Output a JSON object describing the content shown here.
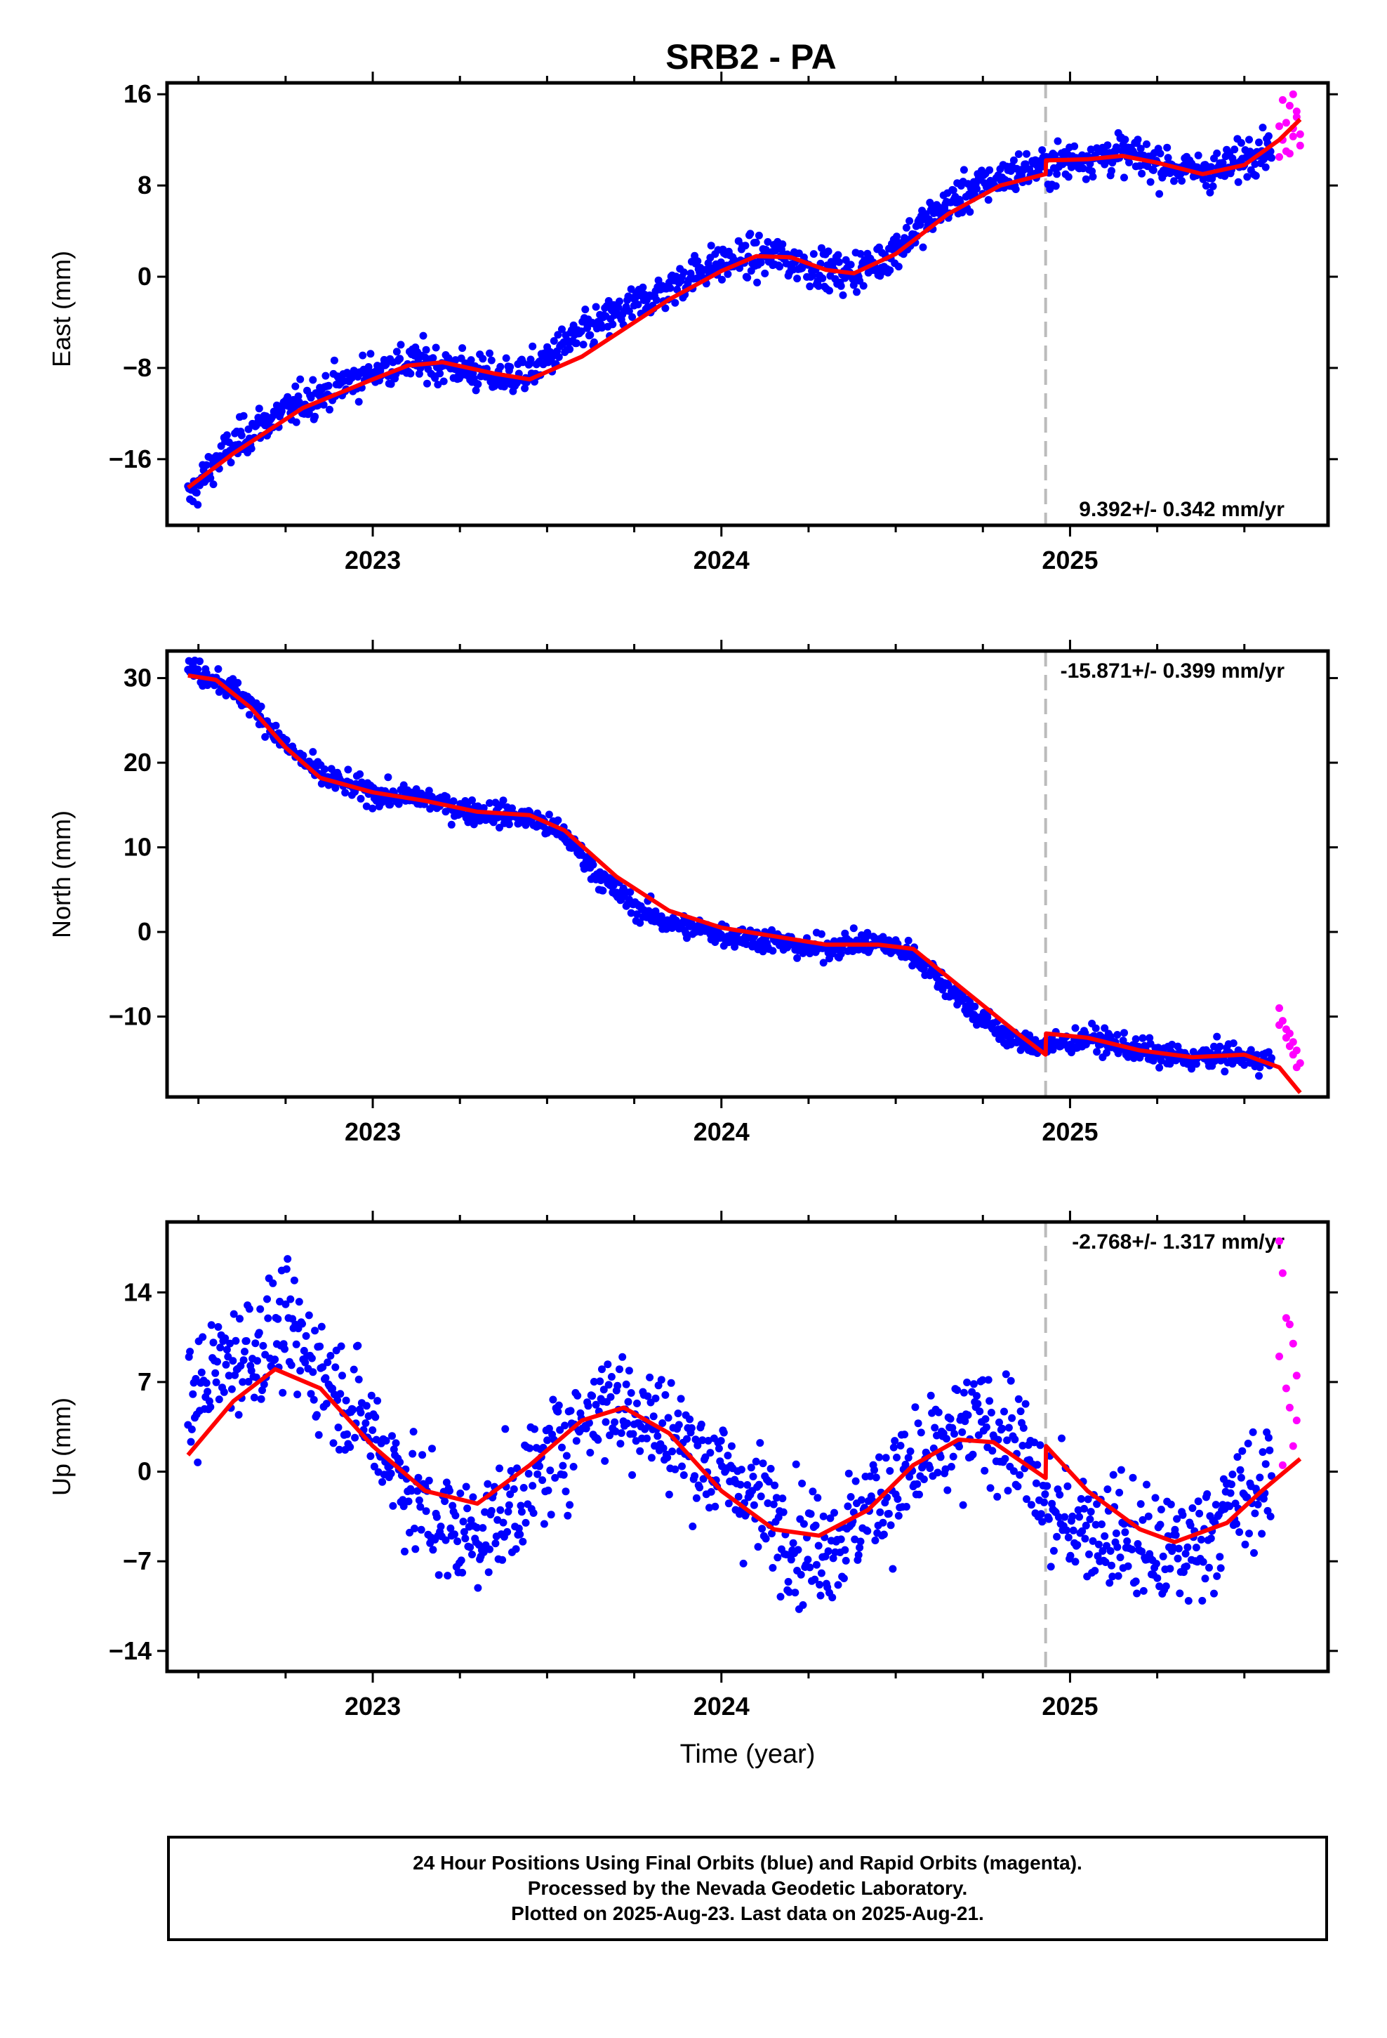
{
  "title": "SRB2 - PA",
  "xlabel": "Time (year)",
  "colors": {
    "final": "#0000ff",
    "rapid": "#ff00ff",
    "model": "#ff0000",
    "discontinuity": "#bbbbbb"
  },
  "chart_data": [
    {
      "id": "east",
      "type": "scatter",
      "ylabel": "East (mm)",
      "rate_label": "9.392+/- 0.342 mm/yr",
      "xlim": [
        2022.41,
        2025.74
      ],
      "ylim": [
        -21.8,
        17
      ],
      "yticks": [
        -16,
        -8,
        0,
        8,
        16
      ],
      "xticks": [
        2023,
        2024,
        2025
      ],
      "discontinuity": 2024.93,
      "model": {
        "x": [
          2022.47,
          2022.6,
          2022.8,
          2023.0,
          2023.1,
          2023.2,
          2023.35,
          2023.45,
          2023.6,
          2023.75,
          2023.85,
          2024.0,
          2024.1,
          2024.2,
          2024.3,
          2024.38,
          2024.5,
          2024.65,
          2024.8,
          2024.93,
          2024.931,
          2025.05,
          2025.15,
          2025.25,
          2025.38,
          2025.5,
          2025.6,
          2025.66
        ],
        "y": [
          -18.5,
          -15.5,
          -11.5,
          -9.0,
          -7.8,
          -7.5,
          -8.5,
          -9.0,
          -7.0,
          -4.0,
          -2.0,
          0.5,
          1.8,
          1.7,
          0.6,
          0.3,
          2.0,
          5.5,
          8.0,
          9.0,
          10.2,
          10.3,
          10.6,
          10.0,
          9.0,
          9.8,
          12.0,
          13.8
        ]
      },
      "final_points": {
        "x": [
          2022.47,
          2022.55,
          2022.65,
          2022.75,
          2022.85,
          2022.95,
          2023.05,
          2023.15,
          2023.25,
          2023.35,
          2023.45,
          2023.55,
          2023.65,
          2023.75,
          2023.85,
          2023.95,
          2024.05,
          2024.15,
          2024.25,
          2024.35,
          2024.45,
          2024.55,
          2024.65,
          2024.75,
          2024.85,
          2024.95,
          2025.05,
          2025.15,
          2025.25,
          2025.35,
          2025.45,
          2025.55
        ],
        "y": [
          -19.5,
          -16.2,
          -13.5,
          -11.8,
          -10.2,
          -8.9,
          -7.8,
          -7.5,
          -8.0,
          -8.8,
          -8.5,
          -6.0,
          -4.2,
          -2.5,
          -1.0,
          0.8,
          1.5,
          1.8,
          1.0,
          0.2,
          1.2,
          3.8,
          6.5,
          8.0,
          9.2,
          9.8,
          10.5,
          10.8,
          10.0,
          9.2,
          9.5,
          11.5
        ]
      },
      "rapid_points": {
        "x": [
          2025.6,
          2025.61,
          2025.62,
          2025.63,
          2025.64,
          2025.65,
          2025.66,
          2025.62,
          2025.64,
          2025.65,
          2025.66,
          2025.63,
          2025.61,
          2025.6,
          2025.64
        ],
        "y": [
          10.5,
          12.0,
          13.5,
          15.0,
          16.0,
          14.5,
          12.5,
          11.0,
          13.0,
          14.0,
          11.5,
          10.8,
          15.5,
          13.2,
          12.3
        ]
      }
    },
    {
      "id": "north",
      "type": "scatter",
      "ylabel": "North (mm)",
      "rate_label": "-15.871+/- 0.399 mm/yr",
      "xlim": [
        2022.41,
        2025.74
      ],
      "ylim": [
        -19.5,
        33.2
      ],
      "yticks": [
        -10,
        0,
        10,
        20,
        30
      ],
      "xticks": [
        2023,
        2024,
        2025
      ],
      "discontinuity": 2024.93,
      "model": {
        "x": [
          2022.47,
          2022.55,
          2022.65,
          2022.75,
          2022.85,
          2023.0,
          2023.15,
          2023.3,
          2023.45,
          2023.55,
          2023.7,
          2023.85,
          2024.0,
          2024.15,
          2024.3,
          2024.45,
          2024.55,
          2024.7,
          2024.85,
          2024.93,
          2024.931,
          2025.05,
          2025.2,
          2025.35,
          2025.5,
          2025.6,
          2025.66
        ],
        "y": [
          30.3,
          29.8,
          26.5,
          21.8,
          18.2,
          16.5,
          15.5,
          14.2,
          13.8,
          12.0,
          6.5,
          2.5,
          0.5,
          -0.5,
          -1.5,
          -1.5,
          -2.0,
          -7.0,
          -12.0,
          -14.5,
          -12.0,
          -12.5,
          -14.0,
          -14.8,
          -14.5,
          -16.0,
          -19.0
        ]
      },
      "final_points": {
        "x": [
          2022.47,
          2022.55,
          2022.65,
          2022.75,
          2022.85,
          2022.95,
          2023.05,
          2023.15,
          2023.25,
          2023.35,
          2023.45,
          2023.55,
          2023.65,
          2023.75,
          2023.85,
          2023.95,
          2024.05,
          2024.15,
          2024.25,
          2024.35,
          2024.45,
          2024.55,
          2024.65,
          2024.75,
          2024.85,
          2024.95,
          2025.05,
          2025.15,
          2025.25,
          2025.35,
          2025.45,
          2025.55
        ],
        "y": [
          31.0,
          30.0,
          27.0,
          22.0,
          18.5,
          17.0,
          16.0,
          15.8,
          14.5,
          14.0,
          13.5,
          11.5,
          6.5,
          3.0,
          1.0,
          0.2,
          -0.5,
          -1.0,
          -2.0,
          -1.5,
          -1.3,
          -2.5,
          -6.5,
          -10.5,
          -13.0,
          -13.5,
          -12.5,
          -13.5,
          -14.5,
          -15.0,
          -14.5,
          -15.2
        ]
      },
      "rapid_points": {
        "x": [
          2025.6,
          2025.61,
          2025.62,
          2025.63,
          2025.64,
          2025.65,
          2025.66,
          2025.62,
          2025.64,
          2025.6,
          2025.63,
          2025.65
        ],
        "y": [
          -9.0,
          -10.5,
          -11.5,
          -12.0,
          -13.0,
          -14.0,
          -15.5,
          -12.5,
          -14.5,
          -11.0,
          -13.5,
          -16.0
        ]
      }
    },
    {
      "id": "up",
      "type": "scatter",
      "ylabel": "Up (mm)",
      "rate_label": "-2.768+/- 1.317 mm/yr",
      "xlim": [
        2022.41,
        2025.74
      ],
      "ylim": [
        -15.6,
        19.5
      ],
      "yticks": [
        -14,
        -7,
        0,
        7,
        14
      ],
      "xticks": [
        2023,
        2024,
        2025
      ],
      "discontinuity": 2024.93,
      "model": {
        "x": [
          2022.47,
          2022.6,
          2022.72,
          2022.85,
          2023.0,
          2023.15,
          2023.3,
          2023.45,
          2023.6,
          2023.72,
          2023.85,
          2024.0,
          2024.15,
          2024.28,
          2024.42,
          2024.55,
          2024.68,
          2024.78,
          2024.93,
          2024.931,
          2025.05,
          2025.2,
          2025.3,
          2025.45,
          2025.55,
          2025.66
        ],
        "y": [
          1.3,
          5.5,
          8.0,
          6.5,
          2.0,
          -1.5,
          -2.5,
          0.5,
          4.0,
          5.0,
          3.0,
          -1.5,
          -4.5,
          -5.0,
          -3.0,
          0.5,
          2.5,
          2.3,
          -0.5,
          2.0,
          -1.5,
          -4.5,
          -5.5,
          -4.0,
          -1.5,
          1.0
        ]
      },
      "final_points": {
        "x": [
          2022.47,
          2022.55,
          2022.65,
          2022.75,
          2022.85,
          2022.95,
          2023.05,
          2023.15,
          2023.25,
          2023.35,
          2023.45,
          2023.55,
          2023.65,
          2023.75,
          2023.85,
          2023.95,
          2024.05,
          2024.15,
          2024.25,
          2024.35,
          2024.45,
          2024.55,
          2024.65,
          2024.75,
          2024.85,
          2024.95,
          2025.05,
          2025.15,
          2025.25,
          2025.35,
          2025.45,
          2025.55
        ],
        "y": [
          5.0,
          8.0,
          9.5,
          11.0,
          8.0,
          5.0,
          1.0,
          -3.0,
          -5.0,
          -4.0,
          -1.0,
          2.5,
          5.5,
          5.0,
          3.0,
          1.0,
          -1.0,
          -3.5,
          -6.0,
          -5.0,
          -2.0,
          0.0,
          2.0,
          4.0,
          2.0,
          -3.5,
          -4.0,
          -5.0,
          -6.5,
          -6.0,
          -3.0,
          -1.0
        ]
      },
      "rapid_points": {
        "x": [
          2025.6,
          2025.61,
          2025.62,
          2025.63,
          2025.64,
          2025.65,
          2025.62,
          2025.63,
          2025.64,
          2025.61,
          2025.6,
          2025.65
        ],
        "y": [
          18.0,
          15.5,
          12.0,
          11.5,
          10.0,
          7.5,
          6.5,
          5.0,
          2.0,
          0.5,
          9.0,
          4.0
        ]
      }
    }
  ],
  "footer": {
    "line1": "24 Hour Positions Using Final Orbits (blue) and Rapid Orbits (magenta).",
    "line2": "Processed by the Nevada Geodetic Laboratory.",
    "line3": "Plotted on 2025-Aug-23. Last data on 2025-Aug-21."
  }
}
